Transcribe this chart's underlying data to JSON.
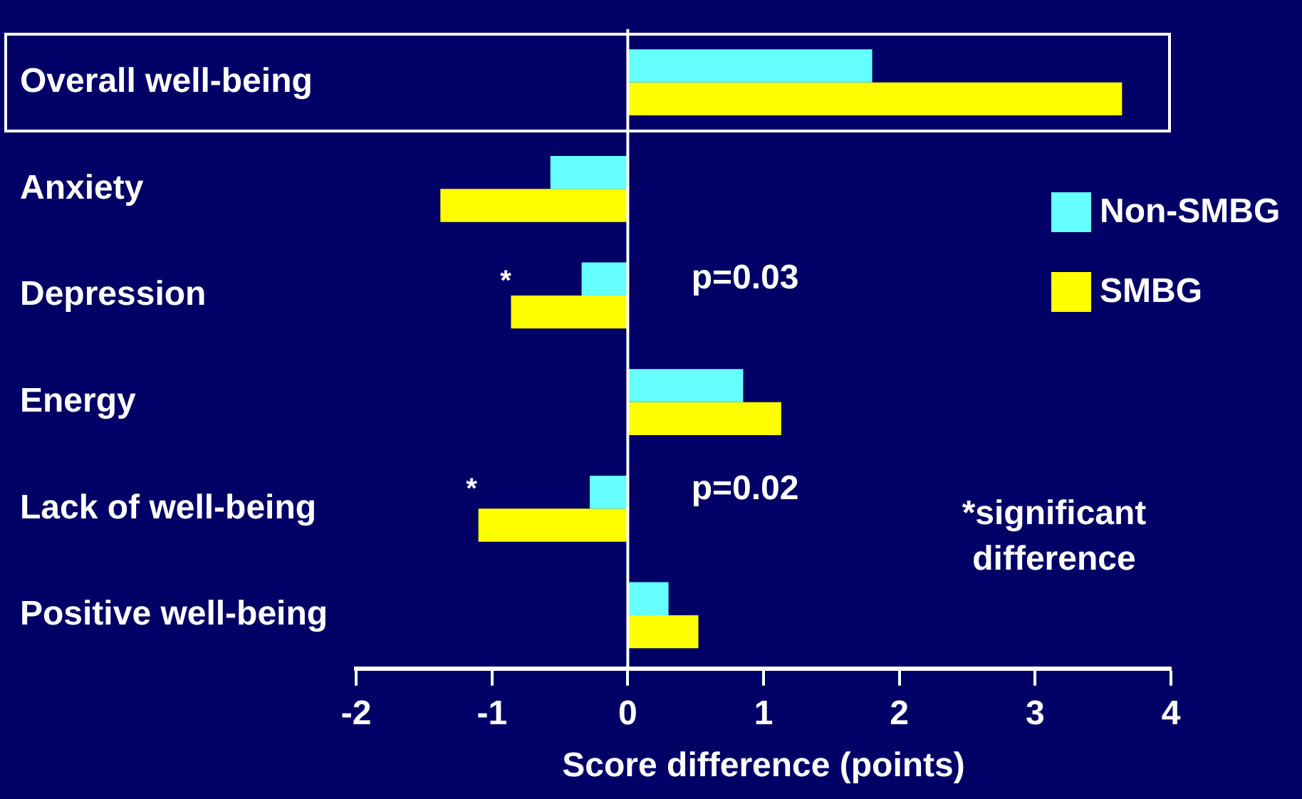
{
  "chart_data": {
    "type": "bar",
    "orientation": "horizontal",
    "xlabel": "Score difference (points)",
    "categories": [
      "Overall well-being",
      "Anxiety",
      "Depression",
      "Energy",
      "Lack of well-being",
      "Positive well-being"
    ],
    "series": [
      {
        "name": "Non-SMBG",
        "color": "#66ffff",
        "values": [
          1.8,
          -0.57,
          -0.34,
          0.85,
          -0.28,
          0.3
        ]
      },
      {
        "name": "SMBG",
        "color": "#ffff00",
        "values": [
          3.64,
          -1.38,
          -0.86,
          1.13,
          -1.1,
          0.52
        ]
      }
    ],
    "xlim": [
      -2,
      4
    ],
    "xticks": [
      -2,
      -1,
      0,
      1,
      2,
      3,
      4
    ],
    "legend": "right",
    "annotations": [
      "*",
      "p=0.03",
      "*",
      "p=0.02",
      "*significant difference"
    ]
  }
}
